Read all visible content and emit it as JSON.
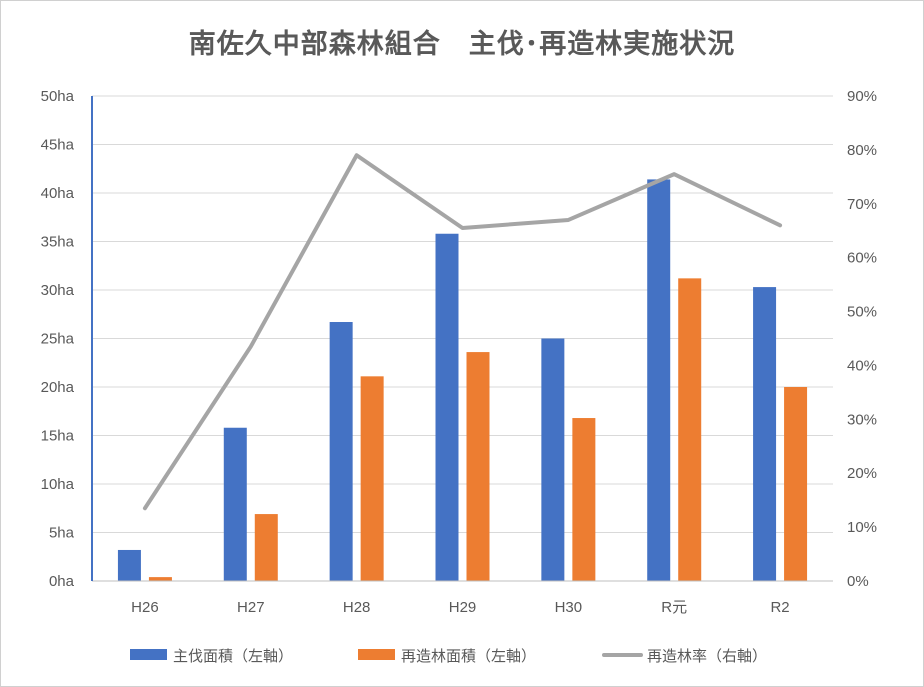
{
  "chart_data": {
    "type": "bar",
    "title": "南佐久中部森林組合　主伐･再造林実施状況",
    "categories": [
      "H26",
      "H27",
      "H28",
      "H29",
      "H30",
      "R元",
      "R2"
    ],
    "series": [
      {
        "name": "主伐面積（左軸）",
        "type": "bar",
        "axis": "left",
        "color": "#4472c4",
        "values": [
          3.2,
          15.8,
          26.7,
          35.8,
          25.0,
          41.4,
          30.3
        ]
      },
      {
        "name": "再造林面積（左軸）",
        "type": "bar",
        "axis": "left",
        "color": "#ed7d31",
        "values": [
          0.4,
          6.9,
          21.1,
          23.6,
          16.8,
          31.2,
          20.0
        ]
      },
      {
        "name": "再造林率（右軸）",
        "type": "line",
        "axis": "right",
        "color": "#a5a5a5",
        "values": [
          13.5,
          43.5,
          79.0,
          65.5,
          67.0,
          75.5,
          66.0
        ]
      }
    ],
    "y_left": {
      "min": 0,
      "max": 50,
      "step": 5,
      "unit": "ha"
    },
    "y_right": {
      "min": 0,
      "max": 90,
      "step": 10,
      "unit": "%"
    },
    "y_left_ticks": [
      "0ha",
      "5ha",
      "10ha",
      "15ha",
      "20ha",
      "25ha",
      "30ha",
      "35ha",
      "40ha",
      "45ha",
      "50ha"
    ],
    "y_right_ticks": [
      "0%",
      "10%",
      "20%",
      "30%",
      "40%",
      "50%",
      "60%",
      "70%",
      "80%",
      "90%"
    ],
    "grid": true,
    "legend_position": "bottom"
  }
}
